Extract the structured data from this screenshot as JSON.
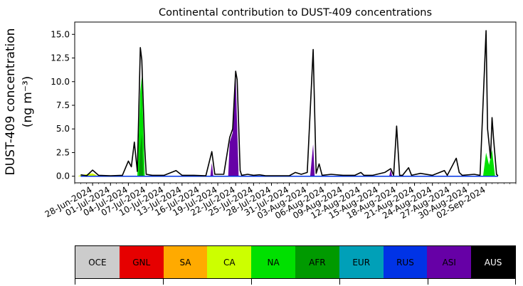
{
  "chart_data": {
    "type": "area",
    "title": "Continental contribution to DUST-409 concentrations",
    "ylabel_line1": "DUST-409 concentration",
    "ylabel_line2": "(ng m⁻³)",
    "ylim": [
      -0.7,
      16.3
    ],
    "yticks": [
      "0.0",
      "2.5",
      "5.0",
      "7.5",
      "10.0",
      "12.5",
      "15.0"
    ],
    "ytick_values": [
      0,
      2.5,
      5,
      7.5,
      10,
      12.5,
      15
    ],
    "x_start": "2024-06-25",
    "x_end": "2024-09-07",
    "xtick_labels": [
      "28-Jun-2024",
      "01-Jul-2024",
      "04-Jul-2024",
      "07-Jul-2024",
      "10-Jul-2024",
      "13-Jul-2024",
      "16-Jul-2024",
      "19-Jul-2024",
      "22-Jul-2024",
      "25-Jul-2024",
      "28-Jul-2024",
      "31-Jul-2024",
      "03-Aug-2024",
      "06-Aug-2024",
      "09-Aug-2024",
      "12-Aug-2024",
      "15-Aug-2024",
      "18-Aug-2024",
      "21-Aug-2024",
      "24-Aug-2024",
      "27-Aug-2024",
      "30-Aug-2024",
      "02-Sep-2024"
    ],
    "xtick_dates": [
      "2024-06-28",
      "2024-07-01",
      "2024-07-04",
      "2024-07-07",
      "2024-07-10",
      "2024-07-13",
      "2024-07-16",
      "2024-07-19",
      "2024-07-22",
      "2024-07-25",
      "2024-07-28",
      "2024-07-31",
      "2024-08-03",
      "2024-08-06",
      "2024-08-09",
      "2024-08-12",
      "2024-08-15",
      "2024-08-18",
      "2024-08-21",
      "2024-08-24",
      "2024-08-27",
      "2024-08-30",
      "2024-09-02"
    ],
    "total_series": [
      [
        "2024-06-26",
        0.15
      ],
      [
        "2024-06-27",
        0.05
      ],
      [
        "2024-06-28",
        0.65
      ],
      [
        "2024-06-29",
        0.1
      ],
      [
        "2024-07-01",
        0.05
      ],
      [
        "2024-07-03",
        0.1
      ],
      [
        "2024-07-04",
        1.6
      ],
      [
        "2024-07-04T12",
        1.0
      ],
      [
        "2024-07-05",
        3.6
      ],
      [
        "2024-07-05T12",
        0.5
      ],
      [
        "2024-07-06",
        13.6
      ],
      [
        "2024-07-06T06",
        12.3
      ],
      [
        "2024-07-06T18",
        3.0
      ],
      [
        "2024-07-07",
        0.2
      ],
      [
        "2024-07-08",
        0.1
      ],
      [
        "2024-07-10",
        0.1
      ],
      [
        "2024-07-12",
        0.6
      ],
      [
        "2024-07-13",
        0.1
      ],
      [
        "2024-07-15",
        0.1
      ],
      [
        "2024-07-17",
        0.05
      ],
      [
        "2024-07-18",
        2.6
      ],
      [
        "2024-07-18T12",
        0.2
      ],
      [
        "2024-07-20",
        0.2
      ],
      [
        "2024-07-21",
        4.1
      ],
      [
        "2024-07-21T12",
        5.0
      ],
      [
        "2024-07-22",
        11.1
      ],
      [
        "2024-07-22T06",
        10.2
      ],
      [
        "2024-07-22T18",
        0.6
      ],
      [
        "2024-07-23",
        0.1
      ],
      [
        "2024-07-24",
        0.2
      ],
      [
        "2024-07-25",
        0.1
      ],
      [
        "2024-07-26",
        0.15
      ],
      [
        "2024-07-27",
        0.05
      ],
      [
        "2024-07-29",
        0.05
      ],
      [
        "2024-07-31",
        0.05
      ],
      [
        "2024-08-01",
        0.4
      ],
      [
        "2024-08-02",
        0.2
      ],
      [
        "2024-08-03",
        0.4
      ],
      [
        "2024-08-04",
        13.4
      ],
      [
        "2024-08-04T12",
        0.3
      ],
      [
        "2024-08-05",
        1.3
      ],
      [
        "2024-08-05T12",
        0.1
      ],
      [
        "2024-08-07",
        0.2
      ],
      [
        "2024-08-09",
        0.1
      ],
      [
        "2024-08-11",
        0.1
      ],
      [
        "2024-08-12",
        0.4
      ],
      [
        "2024-08-12T12",
        0.1
      ],
      [
        "2024-08-14",
        0.1
      ],
      [
        "2024-08-16",
        0.4
      ],
      [
        "2024-08-17",
        0.8
      ],
      [
        "2024-08-17T12",
        0.1
      ],
      [
        "2024-08-18",
        5.3
      ],
      [
        "2024-08-18T12",
        0.1
      ],
      [
        "2024-08-19",
        0.1
      ],
      [
        "2024-08-20",
        0.9
      ],
      [
        "2024-08-20T12",
        0.1
      ],
      [
        "2024-08-22",
        0.3
      ],
      [
        "2024-08-24",
        0.1
      ],
      [
        "2024-08-26",
        0.6
      ],
      [
        "2024-08-26T12",
        0.1
      ],
      [
        "2024-08-28",
        1.9
      ],
      [
        "2024-08-28T12",
        0.4
      ],
      [
        "2024-08-29",
        0.1
      ],
      [
        "2024-08-31",
        0.2
      ],
      [
        "2024-09-01",
        0.1
      ],
      [
        "2024-09-02",
        15.4
      ],
      [
        "2024-09-02T06",
        5.0
      ],
      [
        "2024-09-02T18",
        1.9
      ],
      [
        "2024-09-03",
        6.2
      ],
      [
        "2024-09-03T06",
        4.0
      ],
      [
        "2024-09-03T18",
        0.2
      ],
      [
        "2024-09-04",
        0.05
      ]
    ],
    "component_areas": [
      {
        "name": "NA",
        "color": "#00e000",
        "points": [
          [
            "2024-07-05T12",
            0
          ],
          [
            "2024-07-06",
            9.0
          ],
          [
            "2024-07-06T06",
            10.5
          ],
          [
            "2024-07-06T18",
            0
          ]
        ]
      },
      {
        "name": "NA",
        "color": "#00e000",
        "points": [
          [
            "2024-09-01T12",
            0
          ],
          [
            "2024-09-02",
            2.5
          ],
          [
            "2024-09-02T12",
            1.2
          ],
          [
            "2024-09-03",
            2.8
          ],
          [
            "2024-09-03T12",
            0
          ]
        ]
      },
      {
        "name": "CA",
        "color": "#ccff00",
        "points": [
          [
            "2024-06-25T12",
            0
          ],
          [
            "2024-06-26",
            0.12
          ],
          [
            "2024-06-28",
            0.3
          ],
          [
            "2024-06-29",
            0
          ]
        ]
      },
      {
        "name": "ASI",
        "color": "#6600a6",
        "points": [
          [
            "2024-07-17T18",
            0
          ],
          [
            "2024-07-18",
            1.4
          ],
          [
            "2024-07-18T06",
            0
          ]
        ]
      },
      {
        "name": "ASI",
        "color": "#6600a6",
        "points": [
          [
            "2024-07-20T18",
            0
          ],
          [
            "2024-07-21",
            3.6
          ],
          [
            "2024-07-21T12",
            4.6
          ],
          [
            "2024-07-22",
            10.5
          ],
          [
            "2024-07-22T12",
            0
          ]
        ]
      },
      {
        "name": "ASI",
        "color": "#6600a6",
        "points": [
          [
            "2024-08-03T12",
            0
          ],
          [
            "2024-08-04",
            3.4
          ],
          [
            "2024-08-04T06",
            0
          ]
        ]
      },
      {
        "name": "ASI",
        "color": "#6600a6",
        "points": [
          [
            "2024-08-16T18",
            0
          ],
          [
            "2024-08-17",
            0.7
          ],
          [
            "2024-08-17T06",
            0
          ]
        ]
      },
      {
        "name": "AFR",
        "color": "#009a00",
        "points": [
          [
            "2024-07-05T18",
            0
          ],
          [
            "2024-07-06",
            3.0
          ],
          [
            "2024-07-06T06",
            4.5
          ],
          [
            "2024-07-06T12",
            0
          ]
        ]
      }
    ],
    "legend": [
      {
        "name": "OCE",
        "color": "#cccccc",
        "text": "#000000"
      },
      {
        "name": "GNL",
        "color": "#e60000",
        "text": "#000000"
      },
      {
        "name": "SA",
        "color": "#ffaa00",
        "text": "#000000"
      },
      {
        "name": "CA",
        "color": "#ccff00",
        "text": "#000000"
      },
      {
        "name": "NA",
        "color": "#00e000",
        "text": "#000000"
      },
      {
        "name": "AFR",
        "color": "#009a00",
        "text": "#000000"
      },
      {
        "name": "EUR",
        "color": "#00a0b8",
        "text": "#000000"
      },
      {
        "name": "RUS",
        "color": "#0033e6",
        "text": "#000000"
      },
      {
        "name": "ASI",
        "color": "#6600a6",
        "text": "#000000"
      },
      {
        "name": "AUS",
        "color": "#000000",
        "text": "#ffffff"
      }
    ]
  }
}
